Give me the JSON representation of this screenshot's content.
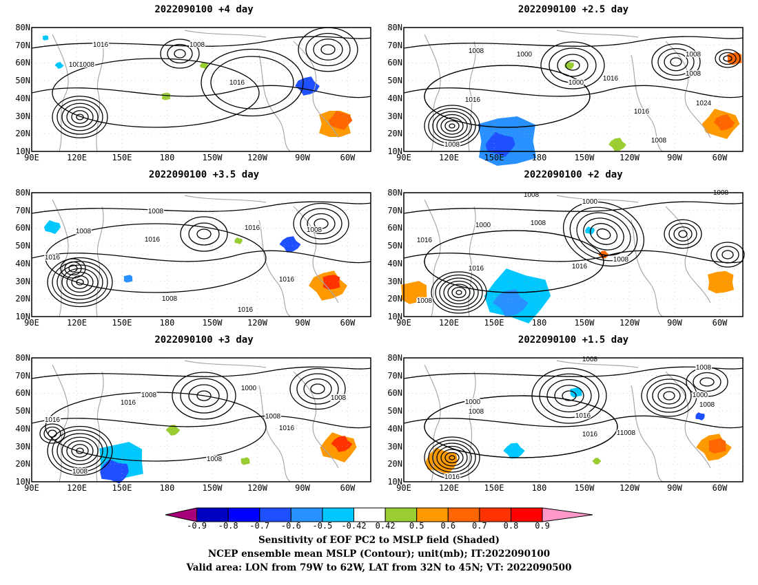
{
  "panels": [
    {
      "title": "2022090100 +4 day"
    },
    {
      "title": "2022090100 +2.5 day"
    },
    {
      "title": "2022090100 +3.5 day"
    },
    {
      "title": "2022090100 +2 day"
    },
    {
      "title": "2022090100 +3 day"
    },
    {
      "title": "2022090100 +1.5 day"
    }
  ],
  "axes": {
    "lat_labels": [
      "80N",
      "70N",
      "60N",
      "50N",
      "40N",
      "30N",
      "20N",
      "10N"
    ],
    "lon_labels": [
      "90E",
      "120E",
      "150E",
      "180",
      "150W",
      "120W",
      "90W",
      "60W"
    ]
  },
  "contour_labels": {
    "p0": [
      "1016",
      "1008",
      "1008",
      "1008",
      "1016"
    ],
    "p1": [
      "1008",
      "1000",
      "1008",
      "1000",
      "1016",
      "1016",
      "1008",
      "1016",
      "1008",
      "1024",
      "1008"
    ],
    "p2": [
      "1008",
      "1008",
      "1016",
      "1016",
      "1008",
      "1016",
      "1016",
      "1008",
      "1016"
    ],
    "p3": [
      "1008",
      "1000",
      "1000",
      "1008",
      "1016",
      "1008",
      "1016",
      "1016",
      "1008",
      "1008"
    ],
    "p4": [
      "1008",
      "1000",
      "1016",
      "1008",
      "1008",
      "1016",
      "1016",
      "1008",
      "1008"
    ],
    "p5": [
      "1008",
      "1008",
      "1000",
      "1008",
      "1016",
      "1000",
      "1016",
      "1016",
      "1008",
      "1016",
      "1008"
    ]
  },
  "colorbar": {
    "ticks": [
      "-0.9",
      "-0.8",
      "-0.7",
      "-0.6",
      "-0.5",
      "-0.42",
      "0.42",
      "0.5",
      "0.6",
      "0.7",
      "0.8",
      "0.9"
    ],
    "colors": [
      "#a8007a",
      "#0000c0",
      "#0000ff",
      "#1e50ff",
      "#2890ff",
      "#00c8ff",
      "#ffffff",
      "#9acd32",
      "#ff9900",
      "#ff6600",
      "#ff3300",
      "#ff0000",
      "#ff99cc"
    ]
  },
  "caption": {
    "line1": "Sensitivity of EOF PC2 to MSLP field (Shaded)",
    "line2": "NCEP ensemble mean MSLP (Contour); unit(mb); IT:2022090100",
    "line3": "Valid area: LON from 79W to 62W, LAT from 32N to 45N; VT: 2022090500"
  }
}
